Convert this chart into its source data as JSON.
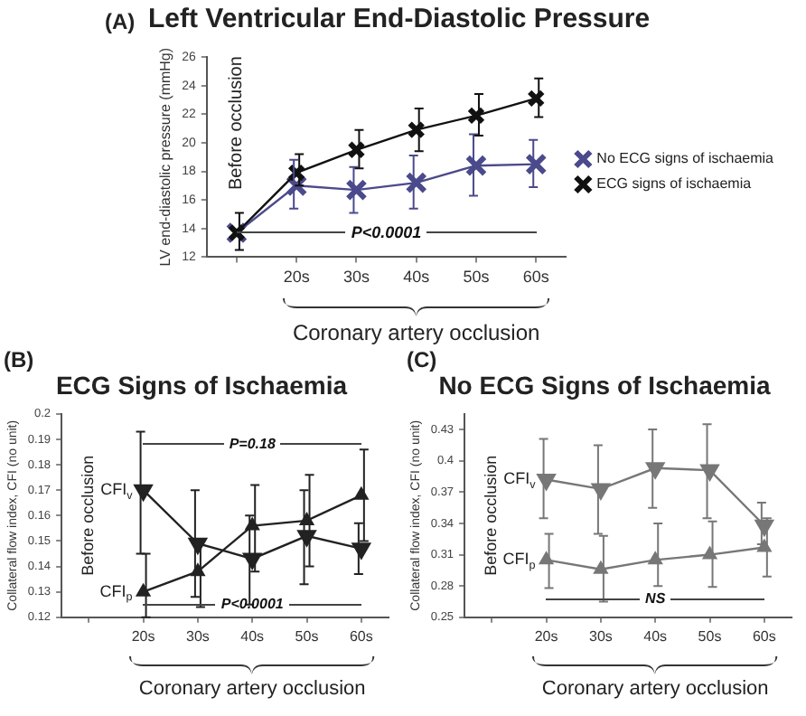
{
  "chart_data": [
    {
      "type": "line",
      "title": "Left Ventricular End-Diastolic Pressure",
      "xlabel": "Coronary artery occlusion",
      "ylabel": "LV end-diastolic pressure (mmHg)",
      "annotations": [
        "(A)",
        "Before occlusion",
        "P<0.0001"
      ],
      "categories": [
        null,
        "20s",
        "30s",
        "40s",
        "50s",
        "60s"
      ],
      "series": [
        {
          "name": "No ECG signs of ischaemia",
          "color": "#4b4a8c",
          "values": [
            13.7,
            17.0,
            16.7,
            17.2,
            18.4,
            18.5
          ],
          "errors": [
            null,
            [
              15.4,
              18.8
            ],
            [
              15.1,
              18.3
            ],
            [
              15.4,
              19.1
            ],
            [
              16.3,
              20.6
            ],
            [
              16.9,
              20.2
            ]
          ]
        },
        {
          "name": "ECG signs of ischaemia",
          "color": "#111111",
          "values": [
            13.7,
            17.9,
            19.5,
            20.9,
            21.9,
            23.1
          ],
          "errors": [
            [
              12.5,
              15.1
            ],
            [
              17.0,
              19.2
            ],
            [
              18.2,
              20.9
            ],
            [
              19.4,
              22.4
            ],
            [
              20.5,
              23.4
            ],
            [
              21.8,
              24.5
            ]
          ]
        }
      ],
      "marker": "cross",
      "ylim": [
        12,
        26
      ],
      "yticks": [
        12,
        14,
        16,
        18,
        20,
        22,
        24,
        26
      ],
      "grid": false,
      "legend": "right"
    },
    {
      "type": "line",
      "title": "ECG Signs of Ischaemia",
      "xlabel": "Coronary artery occlusion",
      "ylabel": "Collateral flow index, CFI (no unit)",
      "annotations": [
        "(B)",
        "Before occlusion",
        "P=0.18",
        "P<0.0001"
      ],
      "categories": [
        null,
        "20s",
        "30s",
        "40s",
        "50s",
        "60s"
      ],
      "series": [
        {
          "name": "CFI$_{v}$",
          "color": "#222222",
          "values": [
            null,
            0.17,
            0.149,
            0.143,
            0.152,
            0.147
          ],
          "errors": [
            null,
            [
              0.145,
              0.193
            ],
            [
              0.128,
              0.17
            ],
            [
              0.125,
              0.16
            ],
            [
              0.133,
              0.17
            ],
            [
              0.137,
              0.157
            ]
          ]
        },
        {
          "name": "CFI$_{p}$",
          "color": "#222222",
          "values": [
            null,
            0.13,
            0.138,
            0.156,
            0.158,
            0.168
          ],
          "errors": [
            null,
            [
              0.12,
              0.145
            ],
            [
              0.124,
              0.15
            ],
            [
              0.138,
              0.172
            ],
            [
              0.14,
              0.176
            ],
            [
              0.15,
              0.186
            ]
          ]
        }
      ],
      "marker": "triangle",
      "ylim": [
        0.12,
        0.2
      ],
      "yticks": [
        0.12,
        0.13,
        0.14,
        0.15,
        0.16,
        0.17,
        0.18,
        0.19,
        0.2
      ],
      "grid": false,
      "legend": false
    },
    {
      "type": "line",
      "title": "No ECG Signs of Ischaemia",
      "xlabel": "Coronary artery occlusion",
      "ylabel": "Collateral flow index, CFI (no unit)",
      "annotations": [
        "(C)",
        "Before occlusion",
        "NS"
      ],
      "categories": [
        null,
        "20s",
        "30s",
        "40s",
        "50s",
        "60s"
      ],
      "series": [
        {
          "name": "CFI$_{v}$",
          "color": "#777777",
          "values": [
            null,
            0.382,
            0.373,
            0.393,
            0.391,
            0.338
          ],
          "errors": [
            null,
            [
              0.345,
              0.421
            ],
            [
              0.33,
              0.415
            ],
            [
              0.355,
              0.43
            ],
            [
              0.345,
              0.435
            ],
            [
              0.32,
              0.36
            ]
          ]
        },
        {
          "name": "CFI$_{p}$",
          "color": "#777777",
          "values": [
            null,
            0.305,
            0.296,
            0.305,
            0.31,
            0.317
          ],
          "errors": [
            null,
            [
              0.278,
              0.33
            ],
            [
              0.265,
              0.328
            ],
            [
              0.28,
              0.34
            ],
            [
              0.279,
              0.342
            ],
            [
              0.289,
              0.345
            ]
          ]
        }
      ],
      "marker": "triangle",
      "ylim": [
        0.25,
        0.445
      ],
      "yticks": [
        0.25,
        0.28,
        0.31,
        0.34,
        0.37,
        0.4,
        0.43
      ],
      "grid": false,
      "legend": false
    }
  ]
}
